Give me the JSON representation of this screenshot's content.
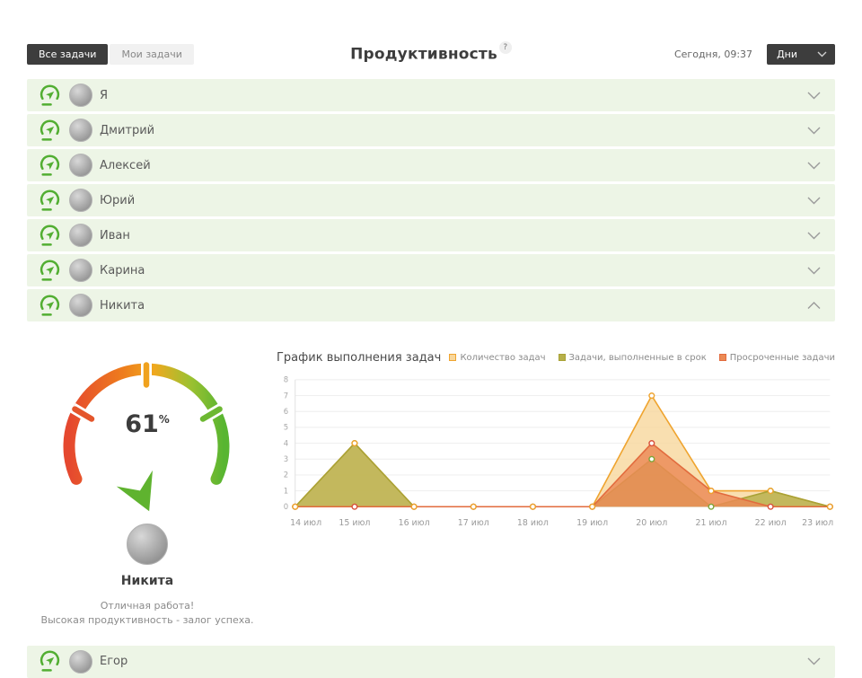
{
  "header": {
    "tab_all": "Все задачи",
    "tab_my": "Мои задачи",
    "title": "Продуктивность",
    "help": "?",
    "date": "Сегодня, 09:37",
    "period": "Дни"
  },
  "members": [
    {
      "name": "Я"
    },
    {
      "name": "Дмитрий"
    },
    {
      "name": "Алексей"
    },
    {
      "name": "Юрий"
    },
    {
      "name": "Иван"
    },
    {
      "name": "Карина"
    },
    {
      "name": "Никита"
    },
    {
      "name": "Егор"
    }
  ],
  "detail": {
    "percent": "61",
    "percent_unit": "%",
    "name": "Никита",
    "message_line1": "Отличная работа!",
    "message_line2": "Высокая продуктивность - залог успеха."
  },
  "colors": {
    "accent_green": "#52ae32",
    "row_background": "#edf5e6",
    "gauge_red": "#e5482f",
    "gauge_orange": "#f0a21e",
    "gauge_green": "#58b531",
    "dark_button": "#3d3d3d"
  },
  "chart_data": {
    "type": "area",
    "title": "График выполнения задач",
    "x": [
      "14 июл",
      "15 июл",
      "16 июл",
      "17 июл",
      "18 июл",
      "19 июл",
      "20 июл",
      "21 июл",
      "22 июл",
      "23 июл"
    ],
    "ylim": [
      0,
      8
    ],
    "grid": true,
    "legend_position": "top-right",
    "series": [
      {
        "name": "Количество задач",
        "color": "#efa42f",
        "fill": "#f8d79c",
        "marker": "#efa42f",
        "values": [
          0,
          4,
          0,
          0,
          0,
          0,
          7,
          1,
          1,
          0
        ]
      },
      {
        "name": "Задачи, выполненные в срок",
        "color": "#a9a236",
        "fill": "#b7b04a",
        "marker": "#7da539",
        "values": [
          0,
          4,
          0,
          0,
          0,
          0,
          3,
          0,
          1,
          0
        ]
      },
      {
        "name": "Просроченные задачи",
        "color": "#e26b3e",
        "fill": "#eb8a55",
        "marker": "#d9503c",
        "values": [
          0,
          0,
          0,
          0,
          0,
          0,
          4,
          1,
          0,
          0
        ]
      }
    ]
  }
}
